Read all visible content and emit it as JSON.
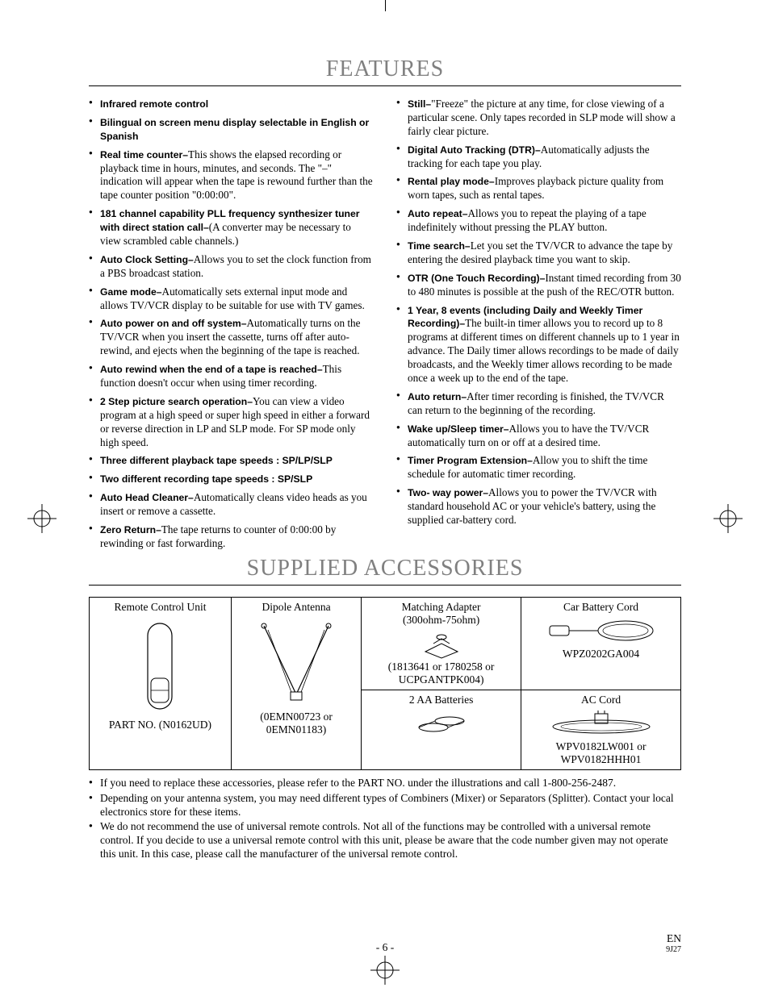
{
  "sections": {
    "features_title": "FEATURES",
    "accessories_title": "SUPPLIED ACCESSORIES"
  },
  "colors": {
    "title_color": "#808080",
    "text_color": "#000000",
    "background": "#ffffff"
  },
  "features_left": [
    {
      "bold": "Infrared remote control",
      "text": ""
    },
    {
      "bold": "Bilingual on screen menu display selectable in English or Spanish",
      "text": ""
    },
    {
      "bold": "Real time counter–",
      "text": "This shows the elapsed recording or playback time in hours, minutes, and seconds. The \"–\" indication will appear when the tape is rewound further than the tape counter position \"0:00:00\"."
    },
    {
      "bold": "181 channel capability PLL frequency synthesizer tuner with direct station call–",
      "text": "(A converter may be necessary to view scrambled cable channels.)"
    },
    {
      "bold": "Auto Clock Setting–",
      "text": "Allows you to set the clock function from a PBS broadcast station."
    },
    {
      "bold": "Game mode–",
      "text": "Automatically sets external input mode and allows TV/VCR display to be suitable for use with TV games."
    },
    {
      "bold": "Auto power on and off system–",
      "text": "Automatically turns on the TV/VCR when you insert the cassette, turns off after auto-rewind, and ejects when the beginning of the tape is reached."
    },
    {
      "bold": "Auto rewind when the end of a tape is reached–",
      "text": "This function doesn't occur when using timer recording."
    },
    {
      "bold": "2 Step picture search operation–",
      "text": "You can view a video program at a high speed or super high speed in either a forward or reverse direction in LP and SLP mode. For SP mode only high speed."
    },
    {
      "bold": "Three different playback tape speeds : SP/LP/SLP",
      "text": ""
    },
    {
      "bold": "Two different recording tape speeds : SP/SLP",
      "text": ""
    },
    {
      "bold": "Auto Head Cleaner–",
      "text": "Automatically cleans video heads as you insert or remove a cassette."
    },
    {
      "bold": "Zero Return–",
      "text": "The tape returns to counter of 0:00:00 by rewinding or fast forwarding."
    }
  ],
  "features_right": [
    {
      "bold": "Still–",
      "text": "\"Freeze\" the picture at any time, for close viewing of a particular scene. Only tapes recorded in SLP mode will show a fairly clear picture."
    },
    {
      "bold": "Digital Auto Tracking (DTR)–",
      "text": "Automatically adjusts the tracking for each tape you play."
    },
    {
      "bold": "Rental play mode–",
      "text": "Improves playback picture quality from worn tapes, such as rental tapes."
    },
    {
      "bold": "Auto repeat–",
      "text": "Allows you to repeat the playing of a tape indefinitely without pressing the PLAY button."
    },
    {
      "bold": "Time search–",
      "text": "Let you set the TV/VCR to advance the tape by entering the desired playback time you want to skip."
    },
    {
      "bold": "OTR (One Touch Recording)–",
      "text": "Instant timed recording from 30 to 480 minutes is possible at the push of the REC/OTR button."
    },
    {
      "bold": "1 Year, 8 events (including Daily and Weekly Timer Recording)–",
      "text": "The built-in timer allows you to record up to 8 programs at different times on different channels up to 1 year in advance. The Daily timer allows recordings to be made of daily broadcasts, and the Weekly timer allows recording to be made once a week up to the end of the tape."
    },
    {
      "bold": "Auto return–",
      "text": "After timer recording is finished, the TV/VCR can return to the beginning of the recording."
    },
    {
      "bold": "Wake up/Sleep timer–",
      "text": "Allows you to have the TV/VCR automatically turn on or off at a desired time."
    },
    {
      "bold": "Timer Program Extension–",
      "text": "Allow you to shift the time schedule for automatic timer recording."
    },
    {
      "bold": "Two- way power–",
      "text": "Allows you to power the TV/VCR with standard household AC or your vehicle's battery, using the supplied car-battery cord."
    }
  ],
  "accessories": {
    "col1": {
      "title": "Remote Control Unit",
      "part": "PART NO. (N0162UD)"
    },
    "col2": {
      "title": "Dipole Antenna",
      "part": "(0EMN00723 or 0EMN01183)"
    },
    "col3": {
      "title1": "Matching Adapter",
      "subtitle1": "(300ohm-75ohm)",
      "part1": "(1813641 or 1780258 or UCPGANTPK004)",
      "title2": "2 AA Batteries"
    },
    "col4": {
      "title1": "Car Battery Cord",
      "part1": "WPZ0202GA004",
      "title2": "AC Cord",
      "part2": "WPV0182LW001 or WPV0182HHH01"
    }
  },
  "notes": [
    "If you need to replace these accessories, please refer to the PART NO. under the illustrations and call 1-800-256-2487.",
    "Depending on your antenna system, you may need different types of Combiners (Mixer) or Separators (Splitter). Contact your local electronics store for these items.",
    "We do not recommend the use of universal remote controls. Not all of the functions may be controlled with a universal remote control. If you decide to use a universal remote control with this unit, please be aware that the code number given may not operate this unit. In this case, please call the manufacturer of the universal remote control."
  ],
  "footer": {
    "page": "- 6 -",
    "lang": "EN",
    "code": "9J27"
  }
}
